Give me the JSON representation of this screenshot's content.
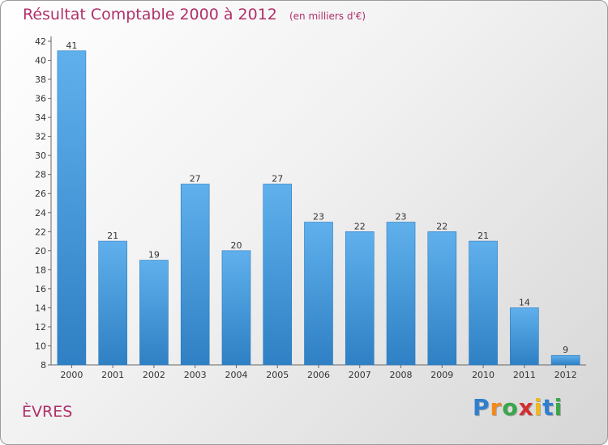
{
  "chart_data": {
    "type": "bar",
    "title": "Résultat Comptable 2000 à 2012",
    "subtitle": "(en milliers d'€)",
    "categories": [
      "2000",
      "2001",
      "2002",
      "2003",
      "2004",
      "2005",
      "2006",
      "2007",
      "2008",
      "2009",
      "2010",
      "2011",
      "2012"
    ],
    "values": [
      41,
      21,
      19,
      27,
      20,
      27,
      23,
      22,
      23,
      22,
      21,
      14,
      9
    ],
    "ylim": [
      8,
      42
    ],
    "yticks": [
      8,
      10,
      12,
      14,
      16,
      18,
      20,
      22,
      24,
      26,
      28,
      30,
      32,
      34,
      36,
      38,
      40,
      42
    ],
    "xlabel": "",
    "ylabel": "",
    "grid": false,
    "bar_color": "#5aa9e6"
  },
  "commune": "ÈVRES",
  "logo": {
    "letters": [
      "P",
      "r",
      "o",
      "x",
      "i",
      "t",
      "i"
    ],
    "colors": [
      "#2f7fcf",
      "#f08a1c",
      "#3aa64a",
      "#d22f2f",
      "#f0b81c",
      "#2f7fcf",
      "#3aa64a"
    ]
  }
}
